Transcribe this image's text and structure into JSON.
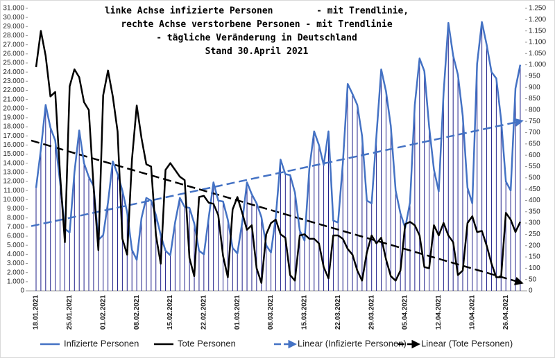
{
  "chart_data": {
    "type": "line",
    "title": [
      "linke Achse infizierte Personen        - mit Trendlinie,",
      "rechte Achse verstorbene Personen - mit Trendlinie",
      "- tägliche Veränderung in Deutschland",
      "Stand 30.April 2021"
    ],
    "categories": [
      "18.01.2021",
      null,
      null,
      null,
      null,
      null,
      null,
      "25.01.2021",
      null,
      null,
      null,
      null,
      null,
      null,
      "01.02.2021",
      null,
      null,
      null,
      null,
      null,
      null,
      "08.02.2021",
      null,
      null,
      null,
      null,
      null,
      null,
      "15.02.2021",
      null,
      null,
      null,
      null,
      null,
      null,
      "22.02.2021",
      null,
      null,
      null,
      null,
      null,
      null,
      "01.03.2021",
      null,
      null,
      null,
      null,
      null,
      null,
      "08.03.2021",
      null,
      null,
      null,
      null,
      null,
      null,
      "15.03.2021",
      null,
      null,
      null,
      null,
      null,
      null,
      "22.03.2021",
      null,
      null,
      null,
      null,
      null,
      null,
      "29.03.2021",
      null,
      null,
      null,
      null,
      null,
      null,
      "05.04.2021",
      null,
      null,
      null,
      null,
      null,
      null,
      "12.04.2021",
      null,
      null,
      null,
      null,
      null,
      null,
      "19.04.2021",
      null,
      null,
      null,
      null,
      null,
      null,
      "26.04.2021",
      null,
      null,
      null
    ],
    "series": [
      {
        "name": "Infizierte Personen",
        "color": "#4472c4",
        "axis": "y",
        "drop_lines": true,
        "drop_color": "#20208a",
        "values": [
          11300,
          15500,
          20400,
          17900,
          16500,
          12000,
          6800,
          6400,
          13000,
          17600,
          14000,
          12500,
          11500,
          5600,
          6100,
          9700,
          14200,
          12800,
          11000,
          8600,
          4500,
          3400,
          8000,
          10200,
          9900,
          8300,
          6100,
          4400,
          3900,
          7500,
          10200,
          9200,
          9100,
          7400,
          4400,
          4000,
          8000,
          11900,
          9900,
          9800,
          7800,
          4700,
          4100,
          7500,
          11900,
          10600,
          9600,
          8100,
          5000,
          4200,
          8100,
          14400,
          12800,
          12700,
          10800,
          6600,
          5500,
          13400,
          17500,
          16000,
          13800,
          17500,
          7700,
          7500,
          14000,
          22700,
          21600,
          20400,
          17000,
          9900,
          9600,
          17000,
          24300,
          21900,
          18100,
          11000,
          8500,
          6900,
          9700,
          20400,
          25500,
          24100,
          18000,
          13300,
          10900,
          21700,
          29400,
          25800,
          23700,
          19200,
          11300,
          9600,
          24900,
          29500,
          27000,
          24000,
          23300,
          18800,
          12000,
          11000,
          22200,
          24800
        ]
      },
      {
        "name": "Tote Personen",
        "color": "#000000",
        "axis": "y2",
        "drop_lines": false,
        "values": [
          990,
          1150,
          1040,
          860,
          880,
          520,
          215,
          905,
          980,
          945,
          835,
          800,
          460,
          180,
          865,
          975,
          860,
          705,
          230,
          160,
          580,
          820,
          675,
          560,
          550,
          245,
          120,
          535,
          565,
          535,
          505,
          490,
          145,
          65,
          415,
          420,
          390,
          385,
          335,
          155,
          60,
          360,
          415,
          345,
          270,
          290,
          100,
          35,
          250,
          300,
          315,
          250,
          235,
          70,
          45,
          245,
          250,
          230,
          230,
          210,
          105,
          55,
          245,
          245,
          230,
          185,
          160,
          90,
          45,
          170,
          245,
          210,
          235,
          140,
          65,
          45,
          90,
          295,
          305,
          290,
          245,
          105,
          100,
          290,
          245,
          300,
          245,
          215,
          70,
          90,
          300,
          330,
          260,
          265,
          200,
          120,
          60,
          60,
          345,
          315,
          260,
          305
        ]
      }
    ],
    "trendlines": [
      {
        "name": "Linear (Infizierte Personen)",
        "color": "#4472c4",
        "axis": "y",
        "start": 7100,
        "end": 18600
      },
      {
        "name": "Linear (Tote Personen)",
        "color": "#000000",
        "axis": "y2",
        "start": 665,
        "end": 37
      }
    ],
    "ylim": [
      0,
      31000
    ],
    "yticks": [
      0,
      {
        "value": 1000,
        "label": "1.000"
      },
      {
        "value": 2000,
        "label": "2.000"
      },
      {
        "value": 3000,
        "label": "3.000"
      },
      {
        "value": 4000,
        "label": "4.000"
      },
      {
        "value": 5000,
        "label": "5.000"
      },
      {
        "value": 6000,
        "label": "6.000"
      },
      {
        "value": 7000,
        "label": "7.000"
      },
      {
        "value": 8000,
        "label": "8.000"
      },
      {
        "value": 9000,
        "label": "9.000"
      },
      {
        "value": 10000,
        "label": "10.000"
      },
      {
        "value": 11000,
        "label": "11.000"
      },
      {
        "value": 12000,
        "label": "12.000"
      },
      {
        "value": 13000,
        "label": "13.000"
      },
      {
        "value": 14000,
        "label": "14.000"
      },
      {
        "value": 15000,
        "label": "15.000"
      },
      {
        "value": 16000,
        "label": "16.000"
      },
      {
        "value": 17000,
        "label": "17.000"
      },
      {
        "value": 18000,
        "label": "18.000"
      },
      {
        "value": 19000,
        "label": "19.000"
      },
      {
        "value": 20000,
        "label": "20.000"
      },
      {
        "value": 21000,
        "label": "21.000"
      },
      {
        "value": 22000,
        "label": "22.000"
      },
      {
        "value": 23000,
        "label": "23.000"
      },
      {
        "value": 24000,
        "label": "24.000"
      },
      {
        "value": 25000,
        "label": "25.000"
      },
      {
        "value": 26000,
        "label": "26.000"
      },
      {
        "value": 27000,
        "label": "27.000"
      },
      {
        "value": 28000,
        "label": "28.000"
      },
      {
        "value": 29000,
        "label": "29.000"
      },
      {
        "value": 30000,
        "label": "30.000"
      },
      {
        "value": 31000,
        "label": "31.000"
      }
    ],
    "y2lim": [
      0,
      1250
    ],
    "y2ticks": [
      0,
      50,
      100,
      150,
      200,
      250,
      300,
      350,
      400,
      450,
      500,
      550,
      600,
      650,
      700,
      750,
      800,
      850,
      900,
      950,
      {
        "value": 1000,
        "label": "1.000"
      },
      {
        "value": 1050,
        "label": "1.050"
      },
      {
        "value": 1100,
        "label": "1.100"
      },
      {
        "value": 1150,
        "label": "1.150"
      },
      {
        "value": 1200,
        "label": "1.200"
      },
      {
        "value": 1250,
        "label": "1.250"
      }
    ],
    "grid": false,
    "legend": "bottom"
  }
}
